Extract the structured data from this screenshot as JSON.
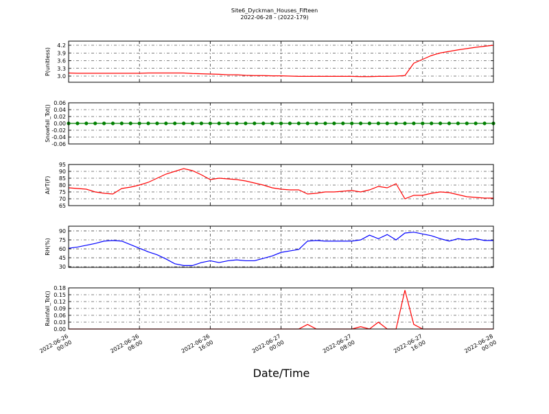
{
  "chart_data": {
    "type": "multi-panel-line",
    "title": "Site6_Dyckman_Houses_Fifteen",
    "subtitle": "2022-06-28 - (2022-179)",
    "xlabel": "Date/Time",
    "grid": true,
    "xlim": [
      "2022-06-26 00:00",
      "2022-06-28 00:00"
    ],
    "xticks": [
      {
        "value": "2022-06-26 00:00",
        "label": [
          "2022-06-26",
          "00:00"
        ]
      },
      {
        "value": "2022-06-26 08:00",
        "label": [
          "2022-06-26",
          "08:00"
        ]
      },
      {
        "value": "2022-06-26 16:00",
        "label": [
          "2022-06-26",
          "16:00"
        ]
      },
      {
        "value": "2022-06-27 00:00",
        "label": [
          "2022-06-27",
          "00:00"
        ]
      },
      {
        "value": "2022-06-27 08:00",
        "label": [
          "2022-06-27",
          "08:00"
        ]
      },
      {
        "value": "2022-06-27 16:00",
        "label": [
          "2022-06-27",
          "16:00"
        ]
      },
      {
        "value": "2022-06-28 00:00",
        "label": [
          "2022-06-28",
          "00:00"
        ]
      }
    ],
    "x": [
      "2022-06-26 00:00",
      "2022-06-26 01:00",
      "2022-06-26 02:00",
      "2022-06-26 03:00",
      "2022-06-26 04:00",
      "2022-06-26 05:00",
      "2022-06-26 06:00",
      "2022-06-26 07:00",
      "2022-06-26 08:00",
      "2022-06-26 09:00",
      "2022-06-26 10:00",
      "2022-06-26 11:00",
      "2022-06-26 12:00",
      "2022-06-26 13:00",
      "2022-06-26 14:00",
      "2022-06-26 15:00",
      "2022-06-26 16:00",
      "2022-06-26 17:00",
      "2022-06-26 18:00",
      "2022-06-26 19:00",
      "2022-06-26 20:00",
      "2022-06-26 21:00",
      "2022-06-26 22:00",
      "2022-06-26 23:00",
      "2022-06-27 00:00",
      "2022-06-27 01:00",
      "2022-06-27 02:00",
      "2022-06-27 03:00",
      "2022-06-27 04:00",
      "2022-06-27 05:00",
      "2022-06-27 06:00",
      "2022-06-27 07:00",
      "2022-06-27 08:00",
      "2022-06-27 09:00",
      "2022-06-27 10:00",
      "2022-06-27 11:00",
      "2022-06-27 12:00",
      "2022-06-27 13:00",
      "2022-06-27 14:00",
      "2022-06-27 15:00",
      "2022-06-27 16:00",
      "2022-06-27 17:00",
      "2022-06-27 18:00",
      "2022-06-27 19:00",
      "2022-06-27 20:00",
      "2022-06-27 21:00",
      "2022-06-27 22:00",
      "2022-06-27 23:00",
      "2022-06-28 00:00"
    ],
    "panels": [
      {
        "ylabel": "P(unitless)",
        "ylim": [
          2.76,
          4.36
        ],
        "yticks": [
          {
            "value": 3,
            "label": "3.0"
          },
          3.3,
          3.6,
          3.9,
          4.2
        ],
        "series": [
          {
            "color": "#ff0000",
            "markers": false,
            "values": [
              3.12,
              3.11,
              3.11,
              3.11,
              3.11,
              3.11,
              3.11,
              3.11,
              3.11,
              3.12,
              3.12,
              3.12,
              3.12,
              3.12,
              3.1,
              3.09,
              3.08,
              3.07,
              3.05,
              3.05,
              3.03,
              3.02,
              3.02,
              3.01,
              3.01,
              3.0,
              2.99,
              2.99,
              2.99,
              2.99,
              2.99,
              2.99,
              2.99,
              2.98,
              2.98,
              2.99,
              2.99,
              3.0,
              3.02,
              3.5,
              3.65,
              3.8,
              3.9,
              3.96,
              4.02,
              4.07,
              4.12,
              4.16,
              4.2
            ]
          }
        ]
      },
      {
        "ylabel": "Snowfall_Tot()",
        "ylim": [
          -0.06,
          0.06
        ],
        "yticks": [
          -0.06,
          -0.04,
          -0.02,
          {
            "value": 0,
            "label": "0.00"
          },
          0.02,
          0.04,
          0.06
        ],
        "series": [
          {
            "color": "#008000",
            "markers": true,
            "values": [
              0,
              0,
              0,
              0,
              0,
              0,
              0,
              0,
              0,
              0,
              0,
              0,
              0,
              0,
              0,
              0,
              0,
              0,
              0,
              0,
              0,
              0,
              0,
              0,
              0,
              0,
              0,
              0,
              0,
              0,
              0,
              0,
              0,
              0,
              0,
              0,
              0,
              0,
              0,
              0,
              0,
              0,
              0,
              0,
              0,
              0,
              0,
              0,
              0
            ]
          }
        ]
      },
      {
        "ylabel": "AirT(F)",
        "ylim": [
          65,
          95
        ],
        "yticks": [
          65,
          70,
          75,
          80,
          85,
          90,
          95
        ],
        "series": [
          {
            "color": "#ff0000",
            "markers": false,
            "values": [
              78,
              77.5,
              77,
              75,
              74,
              73.5,
              77.5,
              78.5,
              80,
              82,
              85,
              88,
              90,
              92,
              90.5,
              87.5,
              84,
              85,
              84.5,
              84,
              83,
              81.5,
              80,
              78,
              77,
              76.5,
              76.5,
              73.5,
              74,
              75,
              75,
              75.5,
              76,
              75,
              76.5,
              79,
              78,
              81,
              70,
              72.5,
              72.5,
              74,
              75,
              74.5,
              73,
              71.5,
              71,
              70.5,
              70.5
            ]
          }
        ]
      },
      {
        "ylabel": "RH(%)",
        "ylim": [
          29,
          98
        ],
        "yticks": [
          30,
          45,
          60,
          75,
          90
        ],
        "series": [
          {
            "color": "#0000ff",
            "markers": false,
            "values": [
              61,
              63,
              66,
              69,
              73,
              74,
              73,
              67,
              61,
              55,
              50,
              43,
              35,
              32,
              32,
              37,
              40,
              37,
              40,
              41.5,
              40,
              40,
              44,
              48,
              54,
              56.5,
              59,
              73,
              74,
              73,
              73,
              73,
              73,
              75,
              83,
              77,
              84,
              75,
              86.5,
              88,
              85,
              82,
              77,
              73,
              77,
              75,
              77,
              74,
              74
            ]
          }
        ]
      },
      {
        "ylabel": "Rainfall_Tot()",
        "ylim": [
          0,
          0.18
        ],
        "yticks": [
          {
            "value": 0,
            "label": "0.00"
          },
          0.03,
          0.06,
          0.09,
          0.12,
          0.15,
          0.18
        ],
        "series": [
          {
            "color": "#ff0000",
            "markers": false,
            "values": [
              0,
              0,
              0,
              0,
              0,
              0,
              0,
              0,
              0,
              0,
              0,
              0,
              0,
              0,
              0,
              0,
              0,
              0,
              0,
              0,
              0,
              0,
              0,
              0,
              0,
              0,
              0,
              0.02,
              0,
              0,
              0,
              0,
              0,
              0.01,
              0,
              0.03,
              0,
              0,
              0.17,
              0.02,
              0,
              0,
              0,
              0,
              0,
              0,
              0,
              0,
              0
            ]
          }
        ]
      }
    ]
  }
}
